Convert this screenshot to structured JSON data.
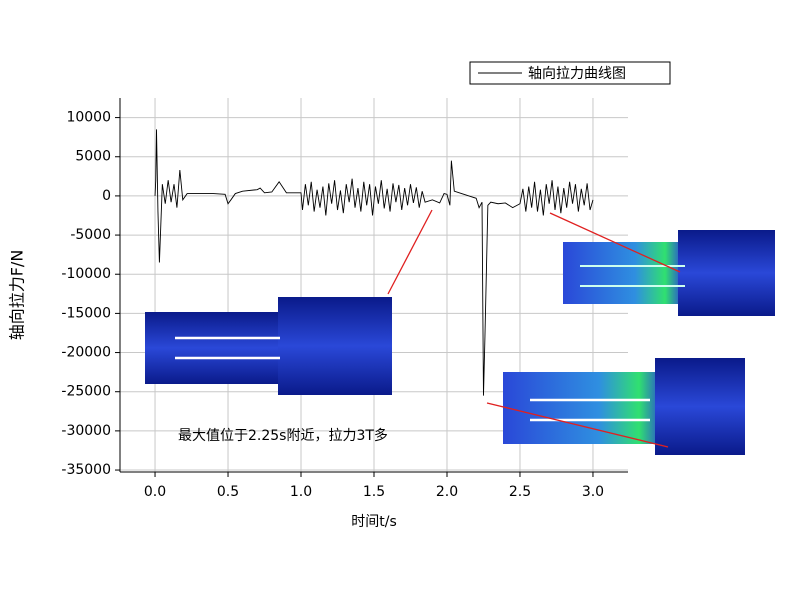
{
  "chart_data": {
    "type": "line",
    "xlabel": "时间t/s",
    "ylabel": "轴向拉力F/N",
    "annotation": "最大值位于2.25s附近，拉力3T多",
    "xlim": [
      -0.24,
      3.24
    ],
    "ylim": [
      -35250,
      12500
    ],
    "xticks": [
      {
        "value": 0,
        "label": "0.0"
      },
      0.5,
      {
        "value": 1,
        "label": "1.0"
      },
      1.5,
      {
        "value": 2,
        "label": "2.0"
      },
      2.5,
      {
        "value": 3,
        "label": "3.0"
      }
    ],
    "yticks": [
      10000,
      5000,
      0,
      -5000,
      -10000,
      -15000,
      -20000,
      -25000,
      -30000,
      -35000
    ],
    "grid": true,
    "legend": "upper right",
    "x": [
      0,
      0.005,
      0.01,
      0.02,
      0.03,
      0.05,
      0.07,
      0.09,
      0.11,
      0.13,
      0.15,
      0.17,
      0.19,
      0.22,
      0.3,
      0.4,
      0.48,
      0.5,
      0.52,
      0.55,
      0.6,
      0.7,
      0.72,
      0.75,
      0.8,
      0.85,
      0.9,
      1.0,
      1.01,
      1.03,
      1.05,
      1.07,
      1.09,
      1.11,
      1.13,
      1.15,
      1.17,
      1.19,
      1.21,
      1.23,
      1.25,
      1.27,
      1.29,
      1.31,
      1.33,
      1.35,
      1.37,
      1.39,
      1.41,
      1.43,
      1.45,
      1.47,
      1.49,
      1.51,
      1.53,
      1.55,
      1.57,
      1.59,
      1.61,
      1.63,
      1.65,
      1.67,
      1.69,
      1.71,
      1.73,
      1.75,
      1.77,
      1.79,
      1.81,
      1.83,
      1.85,
      1.9,
      1.95,
      1.98,
      2.0,
      2.02,
      2.03,
      2.05,
      2.1,
      2.15,
      2.2,
      2.22,
      2.24,
      2.25,
      2.26,
      2.28,
      2.3,
      2.35,
      2.4,
      2.45,
      2.5,
      2.52,
      2.54,
      2.56,
      2.58,
      2.6,
      2.62,
      2.64,
      2.66,
      2.68,
      2.7,
      2.72,
      2.74,
      2.76,
      2.78,
      2.8,
      2.82,
      2.84,
      2.86,
      2.88,
      2.9,
      2.92,
      2.94,
      2.96,
      2.98,
      3.0
    ],
    "series": [
      {
        "name": "轴向拉力曲线图",
        "color": "#000000",
        "values": [
          0,
          2000,
          8500,
          -2000,
          -8500,
          1500,
          -1000,
          2000,
          -800,
          1500,
          -1500,
          3300,
          -500,
          300,
          300,
          300,
          200,
          -1000,
          -500,
          300,
          600,
          800,
          1000,
          400,
          500,
          1800,
          400,
          400,
          -1800,
          1500,
          -1200,
          1800,
          -2000,
          800,
          -1500,
          1200,
          -2500,
          1600,
          -1000,
          2000,
          -1800,
          700,
          -2200,
          1500,
          -800,
          2200,
          -1500,
          1000,
          -2000,
          1800,
          -1200,
          1500,
          -2500,
          1200,
          -1000,
          2000,
          -1600,
          900,
          -2000,
          1600,
          -800,
          1400,
          -1800,
          1000,
          -1200,
          1500,
          -900,
          1100,
          -1500,
          600,
          -800,
          -500,
          -900,
          300,
          200,
          -1200,
          4500,
          600,
          300,
          0,
          -300,
          -1500,
          -800,
          -25500,
          -18000,
          -1200,
          -800,
          -1000,
          -900,
          -1500,
          -1000,
          900,
          -2000,
          1200,
          -1500,
          1800,
          -2000,
          800,
          -2500,
          1500,
          -1000,
          2000,
          -1800,
          1200,
          -2200,
          1000,
          -1500,
          1800,
          -1000,
          1500,
          -2000,
          900,
          -1200,
          1600,
          -1800,
          -500
        ]
      }
    ]
  }
}
